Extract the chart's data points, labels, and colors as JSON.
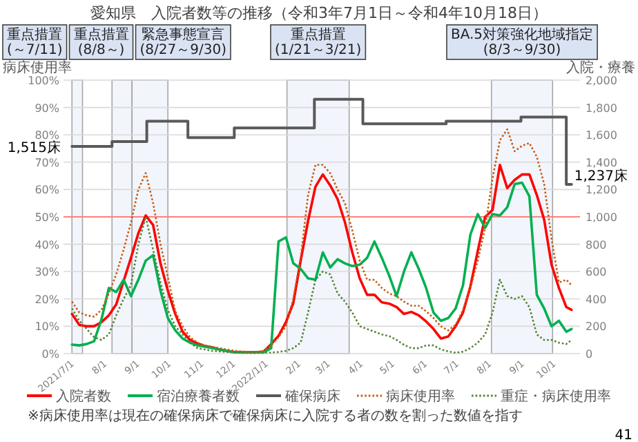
{
  "chart_data": {
    "type": "line",
    "title": "愛知県　入院者数等の推移（令和3年7月1日～令和4年10月18日）",
    "ylabel": "病床使用率",
    "y2label": "入院・療養",
    "x": [
      "2021-07-01",
      "2021-07-08",
      "2021-07-15",
      "2021-07-22",
      "2021-07-29",
      "2021-08-05",
      "2021-08-12",
      "2021-08-19",
      "2021-08-26",
      "2021-09-02",
      "2021-09-09",
      "2021-09-16",
      "2021-09-23",
      "2021-09-30",
      "2021-10-07",
      "2021-10-14",
      "2021-10-21",
      "2021-10-28",
      "2021-11-04",
      "2021-11-11",
      "2021-11-18",
      "2021-11-25",
      "2021-12-02",
      "2021-12-09",
      "2021-12-16",
      "2021-12-23",
      "2021-12-30",
      "2022-01-06",
      "2022-01-13",
      "2022-01-20",
      "2022-01-27",
      "2022-02-03",
      "2022-02-10",
      "2022-02-17",
      "2022-02-24",
      "2022-03-03",
      "2022-03-10",
      "2022-03-17",
      "2022-03-24",
      "2022-03-31",
      "2022-04-07",
      "2022-04-14",
      "2022-04-21",
      "2022-04-28",
      "2022-05-05",
      "2022-05-12",
      "2022-05-19",
      "2022-05-26",
      "2022-06-02",
      "2022-06-09",
      "2022-06-16",
      "2022-06-23",
      "2022-06-30",
      "2022-07-07",
      "2022-07-14",
      "2022-07-21",
      "2022-07-28",
      "2022-08-04",
      "2022-08-11",
      "2022-08-18",
      "2022-08-25",
      "2022-09-01",
      "2022-09-08",
      "2022-09-15",
      "2022-09-22",
      "2022-09-29",
      "2022-10-06",
      "2022-10-13",
      "2022-10-18"
    ],
    "series": [
      {
        "name": "入院者数",
        "color": "#ff0000",
        "axis": "y2",
        "line_style": "solid",
        "values": [
          290,
          210,
          200,
          200,
          230,
          280,
          360,
          530,
          700,
          880,
          1010,
          940,
          660,
          460,
          290,
          160,
          100,
          75,
          55,
          45,
          30,
          20,
          12,
          10,
          10,
          10,
          15,
          70,
          130,
          230,
          370,
          680,
          970,
          1220,
          1310,
          1230,
          1130,
          960,
          740,
          550,
          430,
          430,
          375,
          365,
          340,
          290,
          305,
          280,
          235,
          180,
          110,
          125,
          200,
          300,
          490,
          750,
          1000,
          1050,
          1380,
          1210,
          1270,
          1310,
          1310,
          1160,
          980,
          650,
          480,
          340,
          320
        ]
      },
      {
        "name": "宿泊療養者数",
        "color": "#00b050",
        "axis": "y2",
        "line_style": "solid",
        "values": [
          66,
          60,
          70,
          90,
          250,
          480,
          450,
          540,
          420,
          540,
          680,
          720,
          460,
          260,
          170,
          110,
          80,
          60,
          50,
          40,
          30,
          20,
          10,
          10,
          10,
          10,
          10,
          40,
          820,
          850,
          660,
          620,
          550,
          540,
          740,
          630,
          690,
          660,
          640,
          650,
          700,
          820,
          700,
          570,
          420,
          600,
          740,
          620,
          480,
          300,
          240,
          260,
          330,
          500,
          870,
          1020,
          920,
          1020,
          1010,
          1070,
          1240,
          1250,
          1150,
          430,
          330,
          200,
          240,
          160,
          180
        ]
      },
      {
        "name": "確保病床",
        "color": "#595959",
        "axis": "y2",
        "type": "step",
        "line_style": "solid",
        "x": [
          "2021-07-01",
          "2021-08-08",
          "2021-09-10",
          "2021-10-19",
          "2021-12-02",
          "2022-02-16",
          "2022-04-03",
          "2022-06-21",
          "2022-08-31",
          "2022-10-13",
          "2022-10-18"
        ],
        "values": [
          1515,
          1550,
          1700,
          1580,
          1650,
          1860,
          1680,
          1700,
          1730,
          1237,
          1237
        ]
      },
      {
        "name": "病床使用率",
        "color": "#c55a11",
        "line_style": "dotted",
        "values": [
          19,
          15,
          14,
          13.5,
          16,
          22,
          29,
          38,
          48,
          60,
          66,
          55,
          40,
          28,
          15.5,
          10,
          6,
          4,
          3,
          2.5,
          2,
          1.5,
          1,
          0.8,
          0.6,
          0.6,
          1,
          3,
          6,
          10,
          20,
          35,
          58,
          69,
          69,
          66,
          60,
          55,
          45,
          34,
          27,
          27,
          24,
          22,
          21,
          19,
          17.5,
          17.5,
          15.5,
          13,
          10,
          8.5,
          10.5,
          16,
          24,
          34,
          46,
          64,
          78,
          82,
          74,
          76,
          77,
          72,
          62,
          42,
          26,
          27,
          25
        ]
      },
      {
        "name": "重症・病床使用率",
        "color": "#548235",
        "line_style": "dotted",
        "values": [
          16.5,
          12,
          9,
          6,
          5,
          7,
          14,
          20,
          25,
          40,
          50,
          38,
          26,
          16,
          10,
          7,
          4,
          2,
          1.5,
          1,
          0.8,
          0.6,
          0.4,
          0.3,
          0.2,
          0.2,
          0.3,
          0.4,
          0.6,
          1,
          2,
          4,
          15,
          27,
          30,
          29,
          22,
          19,
          15,
          10,
          9,
          8,
          7,
          6.4,
          5,
          3.2,
          2,
          2,
          3,
          3,
          1.5,
          0.8,
          0.3,
          0.7,
          2,
          4,
          7,
          15,
          27,
          21,
          20,
          21,
          17,
          7,
          5,
          5,
          4,
          3.5,
          5
        ]
      }
    ],
    "xlim": [
      "2021-06-23",
      "2022-10-26"
    ],
    "ylim": [
      0,
      100
    ],
    "yticks": [
      {
        "value": 0,
        "label": "0%"
      },
      {
        "value": 10,
        "label": "10%"
      },
      {
        "value": 20,
        "label": "20%"
      },
      {
        "value": 30,
        "label": "30%"
      },
      {
        "value": 40,
        "label": "40%"
      },
      {
        "value": 50,
        "label": "50%"
      },
      {
        "value": 60,
        "label": "60%"
      },
      {
        "value": 70,
        "label": "70%"
      },
      {
        "value": 80,
        "label": "80%"
      },
      {
        "value": 90,
        "label": "90%"
      },
      {
        "value": 100,
        "label": "100%"
      }
    ],
    "y2lim": [
      0,
      2000
    ],
    "y2ticks": [
      0,
      200,
      400,
      600,
      800,
      {
        "value": 1000,
        "label": "1,000"
      },
      {
        "value": 1200,
        "label": "1,200"
      },
      {
        "value": 1400,
        "label": "1,400"
      },
      {
        "value": 1600,
        "label": "1,600"
      },
      {
        "value": 1800,
        "label": "1,800"
      },
      {
        "value": 2000,
        "label": "2,000"
      }
    ],
    "xticks": [
      {
        "value": "2021-07-01",
        "label": "2021/7/1"
      },
      {
        "value": "2021-08-01",
        "label": "8/1"
      },
      {
        "value": "2021-09-01",
        "label": "9/1"
      },
      {
        "value": "2021-10-01",
        "label": "10/1"
      },
      {
        "value": "2021-11-01",
        "label": "11/1"
      },
      {
        "value": "2021-12-01",
        "label": "12/1"
      },
      {
        "value": "2022-01-01",
        "label": "2022/1/1"
      },
      {
        "value": "2022-02-01",
        "label": "2/1"
      },
      {
        "value": "2022-03-01",
        "label": "3/1"
      },
      {
        "value": "2022-04-01",
        "label": "4/1"
      },
      {
        "value": "2022-05-01",
        "label": "5/1"
      },
      {
        "value": "2022-06-01",
        "label": "6/1"
      },
      {
        "value": "2022-07-01",
        "label": "7/1"
      },
      {
        "value": "2022-08-01",
        "label": "8/1"
      },
      {
        "value": "2022-09-01",
        "label": "9/1"
      },
      {
        "value": "2022-10-01",
        "label": "10/1"
      }
    ],
    "grid": "y",
    "legend": "bottom",
    "ref_lines": [
      {
        "axis": "y",
        "value": 50,
        "color": "#ff8080"
      }
    ],
    "bands": [
      {
        "axis": "x",
        "from": "2021-07-01",
        "to": "2021-07-11",
        "label": "重点措置\n(～7/11)"
      },
      {
        "axis": "x",
        "from": "2021-08-08",
        "to": "2021-08-27",
        "label": "重点措置\n(8/8～)"
      },
      {
        "axis": "x",
        "from": "2021-08-27",
        "to": "2021-09-30",
        "label": "緊急事態宣言\n(8/27～9/30)"
      },
      {
        "axis": "x",
        "from": "2022-01-21",
        "to": "2022-03-21",
        "label": "重点措置\n(1/21～3/21)"
      },
      {
        "axis": "x",
        "from": "2022-08-03",
        "to": "2022-09-30",
        "label": "BA.5対策強化地域指定\n(8/3～9/30)"
      }
    ],
    "annotations": [
      "1,515床",
      "1,237床",
      "※病床使用率は現在の確保病床で確保病床に入院する者の数を割った数値を指す",
      "41"
    ]
  }
}
